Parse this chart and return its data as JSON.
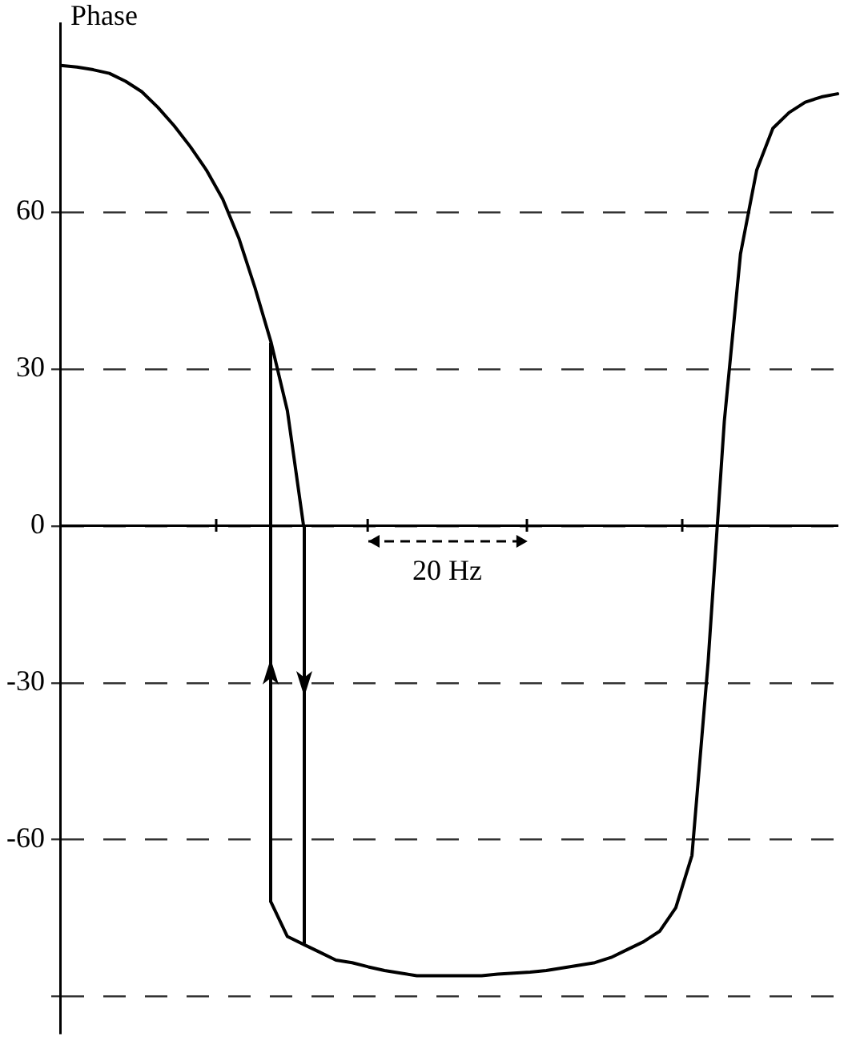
{
  "chart_data": {
    "type": "line",
    "ylabel": "Phase",
    "categories": [
      null,
      null,
      null,
      null,
      null,
      null,
      null,
      null,
      null,
      null,
      null,
      null,
      null,
      null,
      null,
      null,
      null,
      null,
      null,
      null,
      null,
      null,
      null,
      null,
      null,
      null,
      null,
      null,
      null,
      null,
      null,
      null,
      null,
      null,
      null,
      null,
      null,
      null,
      null,
      null,
      null,
      null,
      null,
      null,
      null,
      null,
      null,
      null,
      null
    ],
    "series": [
      {
        "color": "#000000",
        "values": [
          88,
          87.7,
          87.2,
          86.5,
          85,
          83,
          80,
          76.5,
          72.5,
          68,
          62.5,
          55,
          45.5,
          35,
          22,
          0,
          null,
          null,
          null,
          null,
          null,
          null,
          null,
          null,
          null,
          null,
          null,
          null,
          null,
          null,
          null,
          null,
          null,
          null,
          null,
          null,
          null,
          null,
          null,
          null,
          null,
          null,
          null,
          null,
          null,
          null,
          null,
          null,
          null
        ]
      },
      {
        "color": "#000000",
        "values": [
          null,
          null,
          null,
          null,
          null,
          null,
          null,
          null,
          null,
          null,
          null,
          null,
          null,
          -72,
          -78.5,
          -80,
          -81.5,
          -83,
          -83.5,
          -84.3,
          -85,
          -85.5,
          -86,
          -86,
          -86,
          -86,
          -86,
          -85.7,
          -85.5,
          -85.3,
          -85,
          -84.5,
          -84,
          -83.5,
          -82.5,
          -81,
          -79.5,
          -77.5,
          -73,
          -63,
          -26,
          20,
          52,
          68,
          76,
          79,
          81,
          82,
          82.6
        ]
      }
    ],
    "ylim": [
      -97,
      96
    ],
    "yticks": [
      {
        "value": -90,
        "label": null
      },
      -60,
      -30,
      0,
      30,
      60
    ],
    "grid": "y",
    "tick_labels": "y",
    "marker": "none",
    "line_style": "solid",
    "annotations": [
      "20 Hz"
    ]
  }
}
